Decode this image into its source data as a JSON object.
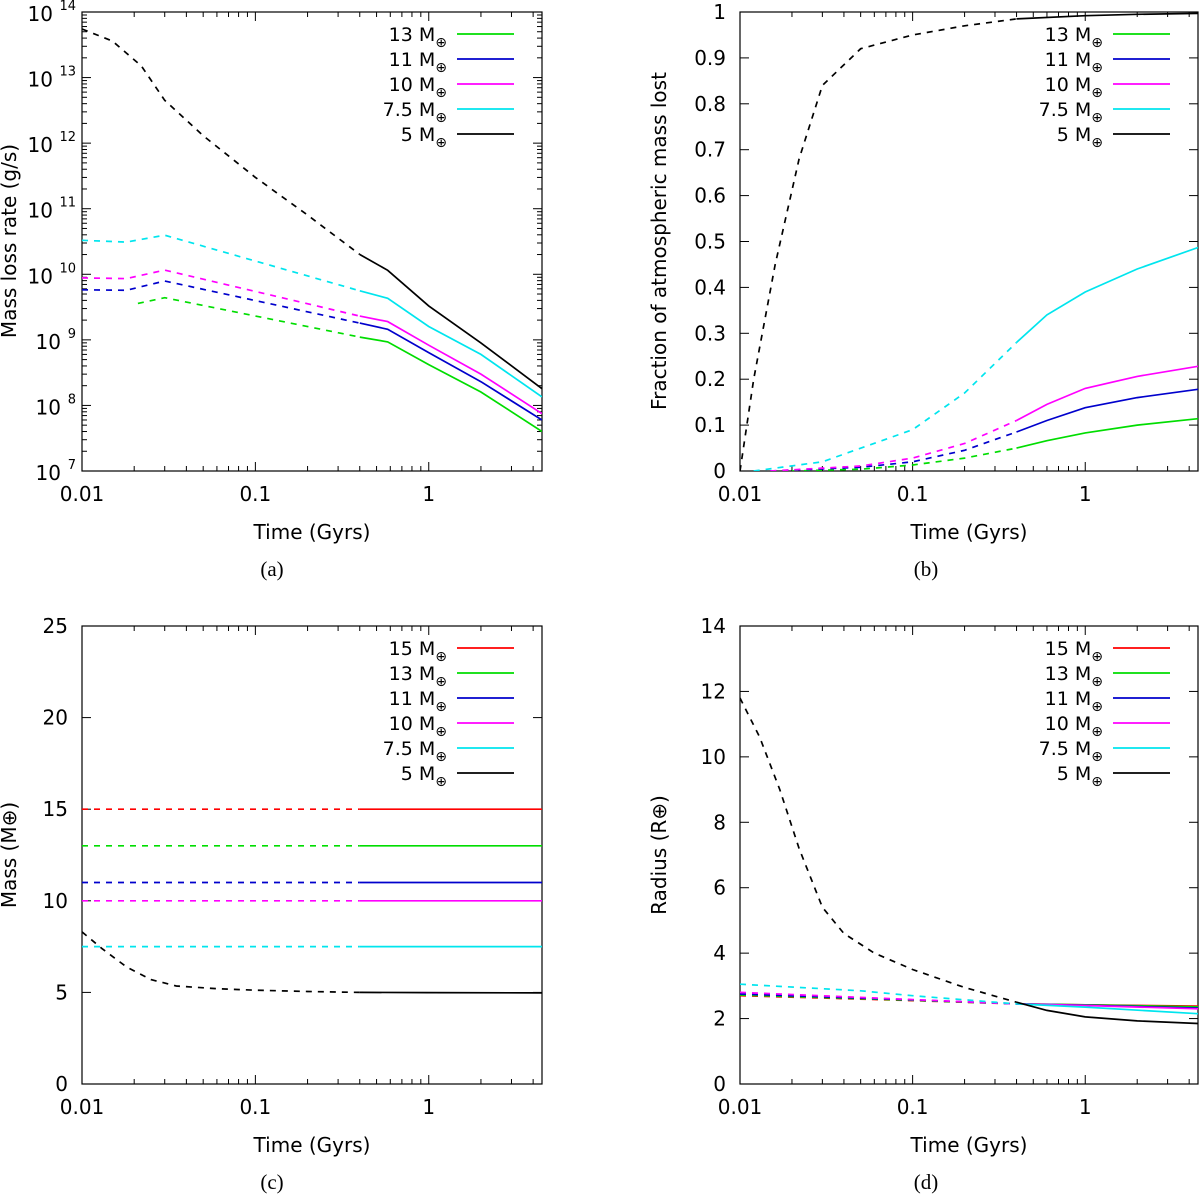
{
  "figure": {
    "legend_prefix_unit": "M",
    "earth_symbol": "⊕"
  },
  "chart_data": [
    {
      "id": "a",
      "type": "line",
      "caption": "(a)",
      "xlabel": "Time (Gyrs)",
      "ylabel": "Mass loss rate (g/s)",
      "xscale": "log",
      "yscale": "log",
      "xlim": [
        0.01,
        4.5
      ],
      "ylim": [
        10000000,
        100000000000000
      ],
      "xticks": [
        0.01,
        0.1,
        1
      ],
      "xtick_labels": [
        "0.01",
        "0.1",
        "1"
      ],
      "yticks": [
        10000000,
        100000000,
        1000000000,
        10000000000,
        100000000000,
        1000000000000,
        10000000000000,
        100000000000000
      ],
      "ytick_bases": [
        "10",
        "10",
        "10",
        "10",
        "10",
        "10",
        "10",
        "10"
      ],
      "ytick_exponents": [
        "7",
        "8",
        "9",
        "10",
        "11",
        "12",
        "13",
        "14"
      ],
      "legend_position": "top-right",
      "series": [
        {
          "name": "13",
          "color": "#00dd00",
          "dashed": [
            [
              0.021,
              3600000000.0
            ],
            [
              0.03,
              4400000000.0
            ],
            [
              0.4,
              1100000000.0
            ]
          ],
          "solid": [
            [
              0.4,
              1100000000.0
            ],
            [
              0.58,
              930000000.0
            ],
            [
              1.0,
              420000000.0
            ],
            [
              2.0,
              160000000.0
            ],
            [
              4.5,
              40000000.0
            ]
          ]
        },
        {
          "name": "11",
          "color": "#0000cc",
          "dashed": [
            [
              0.01,
              5800000000.0
            ],
            [
              0.018,
              5700000000.0
            ],
            [
              0.03,
              7900000000.0
            ],
            [
              0.4,
              1800000000.0
            ]
          ],
          "solid": [
            [
              0.4,
              1800000000.0
            ],
            [
              0.58,
              1450000000.0
            ],
            [
              1.0,
              640000000.0
            ],
            [
              2.0,
              230000000.0
            ],
            [
              4.5,
              60000000.0
            ]
          ]
        },
        {
          "name": "10",
          "color": "#ff00ff",
          "dashed": [
            [
              0.01,
              8800000000.0
            ],
            [
              0.018,
              8600000000.0
            ],
            [
              0.03,
              11600000000.0
            ],
            [
              0.4,
              2300000000.0
            ]
          ],
          "solid": [
            [
              0.4,
              2300000000.0
            ],
            [
              0.58,
              1900000000.0
            ],
            [
              1.0,
              830000000.0
            ],
            [
              2.0,
              300000000.0
            ],
            [
              4.5,
              75000000.0
            ]
          ]
        },
        {
          "name": "7.5",
          "color": "#00e5ee",
          "dashed": [
            [
              0.01,
              33000000000.0
            ],
            [
              0.018,
              31000000000.0
            ],
            [
              0.03,
              39500000000.0
            ],
            [
              0.4,
              5600000000.0
            ]
          ],
          "solid": [
            [
              0.4,
              5600000000.0
            ],
            [
              0.58,
              4300000000.0
            ],
            [
              1.0,
              1600000000.0
            ],
            [
              2.0,
              600000000.0
            ],
            [
              4.5,
              135000000.0
            ]
          ]
        },
        {
          "name": "5",
          "color": "#000000",
          "dashed": [
            [
              0.01,
              55000000000000.0
            ],
            [
              0.015,
              36000000000000.0
            ],
            [
              0.022,
              15000000000000.0
            ],
            [
              0.03,
              4500000000000.0
            ],
            [
              0.05,
              1300000000000.0
            ],
            [
              0.1,
              300000000000.0
            ],
            [
              0.2,
              80000000000.0
            ],
            [
              0.4,
              20000000000.0
            ]
          ],
          "solid": [
            [
              0.4,
              20000000000.0
            ],
            [
              0.58,
              11500000000.0
            ],
            [
              1.0,
              3300000000.0
            ],
            [
              2.0,
              900000000.0
            ],
            [
              4.5,
              180000000.0
            ]
          ]
        }
      ]
    },
    {
      "id": "b",
      "type": "line",
      "caption": "(b)",
      "xlabel": "Time (Gyrs)",
      "ylabel": "Fraction of atmospheric mass lost",
      "xscale": "log",
      "yscale": "linear",
      "xlim": [
        0.01,
        4.5
      ],
      "ylim": [
        0,
        1
      ],
      "xticks": [
        0.01,
        0.1,
        1
      ],
      "xtick_labels": [
        "0.01",
        "0.1",
        "1"
      ],
      "yticks": [
        0,
        0.1,
        0.2,
        0.3,
        0.4,
        0.5,
        0.6,
        0.7,
        0.8,
        0.9,
        1
      ],
      "ytick_labels": [
        "0",
        "0.1",
        "0.2",
        "0.3",
        "0.4",
        "0.5",
        "0.6",
        "0.7",
        "0.8",
        "0.9",
        "1"
      ],
      "legend_position": "top-right",
      "series": [
        {
          "name": "13",
          "color": "#00dd00",
          "dashed": [
            [
              0.02,
              0.0
            ],
            [
              0.05,
              0.004
            ],
            [
              0.1,
              0.013
            ],
            [
              0.2,
              0.028
            ],
            [
              0.4,
              0.05
            ]
          ],
          "solid": [
            [
              0.4,
              0.05
            ],
            [
              0.6,
              0.066
            ],
            [
              1.0,
              0.083
            ],
            [
              2.0,
              0.1
            ],
            [
              4.5,
              0.114
            ]
          ]
        },
        {
          "name": "11",
          "color": "#0000cc",
          "dashed": [
            [
              0.015,
              0.0
            ],
            [
              0.05,
              0.008
            ],
            [
              0.1,
              0.02
            ],
            [
              0.2,
              0.045
            ],
            [
              0.4,
              0.085
            ]
          ],
          "solid": [
            [
              0.4,
              0.085
            ],
            [
              0.6,
              0.11
            ],
            [
              1.0,
              0.138
            ],
            [
              2.0,
              0.16
            ],
            [
              4.5,
              0.178
            ]
          ]
        },
        {
          "name": "10",
          "color": "#ff00ff",
          "dashed": [
            [
              0.015,
              0.0
            ],
            [
              0.05,
              0.011
            ],
            [
              0.1,
              0.028
            ],
            [
              0.2,
              0.06
            ],
            [
              0.4,
              0.11
            ]
          ],
          "solid": [
            [
              0.4,
              0.11
            ],
            [
              0.6,
              0.145
            ],
            [
              1.0,
              0.18
            ],
            [
              2.0,
              0.206
            ],
            [
              4.5,
              0.228
            ]
          ]
        },
        {
          "name": "7.5",
          "color": "#00e5ee",
          "dashed": [
            [
              0.012,
              0.0
            ],
            [
              0.03,
              0.02
            ],
            [
              0.1,
              0.09
            ],
            [
              0.2,
              0.17
            ],
            [
              0.4,
              0.28
            ]
          ],
          "solid": [
            [
              0.4,
              0.28
            ],
            [
              0.6,
              0.34
            ],
            [
              1.0,
              0.39
            ],
            [
              2.0,
              0.44
            ],
            [
              4.5,
              0.487
            ]
          ]
        },
        {
          "name": "5",
          "color": "#000000",
          "dashed": [
            [
              0.01,
              0.0
            ],
            [
              0.012,
              0.2
            ],
            [
              0.016,
              0.45
            ],
            [
              0.022,
              0.68
            ],
            [
              0.03,
              0.84
            ],
            [
              0.05,
              0.92
            ],
            [
              0.1,
              0.95
            ],
            [
              0.2,
              0.97
            ],
            [
              0.4,
              0.985
            ]
          ],
          "solid": [
            [
              0.4,
              0.985
            ],
            [
              1.0,
              0.992
            ],
            [
              2.0,
              0.995
            ],
            [
              4.5,
              0.997
            ]
          ]
        }
      ]
    },
    {
      "id": "c",
      "type": "line",
      "caption": "(c)",
      "xlabel": "Time (Gyrs)",
      "ylabel": "Mass (M⊕)",
      "xscale": "log",
      "yscale": "linear",
      "xlim": [
        0.01,
        4.5
      ],
      "ylim": [
        0,
        25
      ],
      "xticks": [
        0.01,
        0.1,
        1
      ],
      "xtick_labels": [
        "0.01",
        "0.1",
        "1"
      ],
      "yticks": [
        0,
        5,
        10,
        15,
        20,
        25
      ],
      "ytick_labels": [
        "0",
        "5",
        "10",
        "15",
        "20",
        "25"
      ],
      "legend_position": "top-right",
      "series": [
        {
          "name": "15",
          "color": "#ff0000",
          "dashed": [
            [
              0.01,
              15.0
            ],
            [
              0.4,
              15.0
            ]
          ],
          "solid": [
            [
              0.4,
              15.0
            ],
            [
              4.5,
              15.0
            ]
          ]
        },
        {
          "name": "13",
          "color": "#00dd00",
          "dashed": [
            [
              0.01,
              13.0
            ],
            [
              0.4,
              13.0
            ]
          ],
          "solid": [
            [
              0.4,
              13.0
            ],
            [
              4.5,
              13.0
            ]
          ]
        },
        {
          "name": "11",
          "color": "#0000cc",
          "dashed": [
            [
              0.01,
              11.0
            ],
            [
              0.4,
              11.0
            ]
          ],
          "solid": [
            [
              0.4,
              11.0
            ],
            [
              4.5,
              11.0
            ]
          ]
        },
        {
          "name": "10",
          "color": "#ff00ff",
          "dashed": [
            [
              0.01,
              10.0
            ],
            [
              0.4,
              10.0
            ]
          ],
          "solid": [
            [
              0.4,
              10.0
            ],
            [
              4.5,
              10.0
            ]
          ]
        },
        {
          "name": "7.5",
          "color": "#00e5ee",
          "dashed": [
            [
              0.01,
              7.5
            ],
            [
              0.4,
              7.5
            ]
          ],
          "solid": [
            [
              0.4,
              7.5
            ],
            [
              4.5,
              7.5
            ]
          ]
        },
        {
          "name": "5",
          "color": "#000000",
          "dashed": [
            [
              0.01,
              8.3
            ],
            [
              0.013,
              7.4
            ],
            [
              0.018,
              6.4
            ],
            [
              0.025,
              5.7
            ],
            [
              0.035,
              5.35
            ],
            [
              0.06,
              5.2
            ],
            [
              0.1,
              5.12
            ],
            [
              0.2,
              5.05
            ],
            [
              0.4,
              5.0
            ]
          ],
          "solid": [
            [
              0.4,
              5.0
            ],
            [
              1.0,
              4.99
            ],
            [
              4.5,
              4.97
            ]
          ]
        }
      ]
    },
    {
      "id": "d",
      "type": "line",
      "caption": "(d)",
      "xlabel": "Time (Gyrs)",
      "ylabel": "Radius (R⊕)",
      "xscale": "log",
      "yscale": "linear",
      "xlim": [
        0.01,
        4.5
      ],
      "ylim": [
        0,
        14
      ],
      "xticks": [
        0.01,
        0.1,
        1
      ],
      "xtick_labels": [
        "0.01",
        "0.1",
        "1"
      ],
      "yticks": [
        0,
        2,
        4,
        6,
        8,
        10,
        12,
        14
      ],
      "ytick_labels": [
        "0",
        "2",
        "4",
        "6",
        "8",
        "10",
        "12",
        "14"
      ],
      "legend_position": "top-right",
      "series": [
        {
          "name": "15",
          "color": "#ff0000",
          "dashed": [
            [
              0.01,
              2.7
            ],
            [
              0.1,
              2.55
            ],
            [
              0.4,
              2.45
            ]
          ],
          "solid": [
            [
              0.4,
              2.45
            ],
            [
              1.0,
              2.42
            ],
            [
              4.5,
              2.38
            ]
          ]
        },
        {
          "name": "13",
          "color": "#00dd00",
          "dashed": [
            [
              0.01,
              2.72
            ],
            [
              0.1,
              2.56
            ],
            [
              0.4,
              2.45
            ]
          ],
          "solid": [
            [
              0.4,
              2.45
            ],
            [
              1.0,
              2.42
            ],
            [
              4.5,
              2.36
            ]
          ]
        },
        {
          "name": "11",
          "color": "#0000cc",
          "dashed": [
            [
              0.01,
              2.75
            ],
            [
              0.1,
              2.57
            ],
            [
              0.4,
              2.45
            ]
          ],
          "solid": [
            [
              0.4,
              2.45
            ],
            [
              1.0,
              2.41
            ],
            [
              4.5,
              2.32
            ]
          ]
        },
        {
          "name": "10",
          "color": "#ff00ff",
          "dashed": [
            [
              0.01,
              2.8
            ],
            [
              0.1,
              2.58
            ],
            [
              0.4,
              2.45
            ]
          ],
          "solid": [
            [
              0.4,
              2.45
            ],
            [
              1.0,
              2.4
            ],
            [
              4.5,
              2.3
            ]
          ]
        },
        {
          "name": "7.5",
          "color": "#00e5ee",
          "dashed": [
            [
              0.01,
              3.05
            ],
            [
              0.05,
              2.85
            ],
            [
              0.1,
              2.7
            ],
            [
              0.4,
              2.45
            ]
          ],
          "solid": [
            [
              0.4,
              2.45
            ],
            [
              1.0,
              2.35
            ],
            [
              4.5,
              2.15
            ]
          ]
        },
        {
          "name": "5",
          "color": "#000000",
          "dashed": [
            [
              0.01,
              11.8
            ],
            [
              0.013,
              10.6
            ],
            [
              0.017,
              9.0
            ],
            [
              0.022,
              7.2
            ],
            [
              0.03,
              5.4
            ],
            [
              0.04,
              4.6
            ],
            [
              0.06,
              4.0
            ],
            [
              0.1,
              3.5
            ],
            [
              0.2,
              2.95
            ],
            [
              0.4,
              2.5
            ]
          ],
          "solid": [
            [
              0.4,
              2.5
            ],
            [
              0.6,
              2.25
            ],
            [
              1.0,
              2.05
            ],
            [
              2.0,
              1.93
            ],
            [
              4.5,
              1.85
            ]
          ]
        }
      ]
    }
  ]
}
